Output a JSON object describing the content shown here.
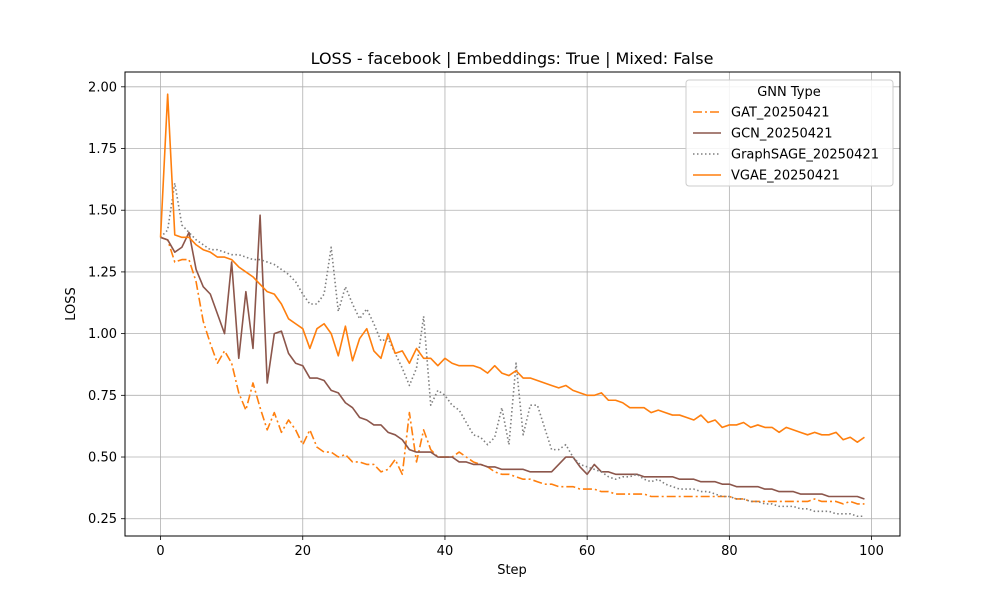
{
  "chart_data": {
    "type": "line",
    "title": "LOSS - facebook | Embeddings: True | Mixed: False",
    "xlabel": "Step",
    "ylabel": "LOSS",
    "xlim": [
      -5,
      104
    ],
    "ylim": [
      0.18,
      2.06
    ],
    "xticks": [
      0,
      20,
      40,
      60,
      80,
      100
    ],
    "yticks": [
      0.25,
      0.5,
      0.75,
      1.0,
      1.25,
      1.5,
      1.75,
      2.0
    ],
    "ytick_labels": [
      "0.25",
      "0.50",
      "0.75",
      "1.00",
      "1.25",
      "1.50",
      "1.75",
      "2.00"
    ],
    "grid": true,
    "legend": {
      "title": "GNN Type",
      "placement": "top-right"
    },
    "x": [
      0,
      1,
      2,
      3,
      4,
      5,
      6,
      7,
      8,
      9,
      10,
      11,
      12,
      13,
      14,
      15,
      16,
      17,
      18,
      19,
      20,
      21,
      22,
      23,
      24,
      25,
      26,
      27,
      28,
      29,
      30,
      31,
      32,
      33,
      34,
      35,
      36,
      37,
      38,
      39,
      40,
      41,
      42,
      43,
      44,
      45,
      46,
      47,
      48,
      49,
      50,
      51,
      52,
      53,
      54,
      55,
      56,
      57,
      58,
      59,
      60,
      61,
      62,
      63,
      64,
      65,
      66,
      67,
      68,
      69,
      70,
      71,
      72,
      73,
      74,
      75,
      76,
      77,
      78,
      79,
      80,
      81,
      82,
      83,
      84,
      85,
      86,
      87,
      88,
      89,
      90,
      91,
      92,
      93,
      94,
      95,
      96,
      97,
      98,
      99
    ],
    "series": [
      {
        "name": "GAT_20250421",
        "color": "#ff7f0e",
        "dash": "dashdot",
        "values": [
          1.39,
          1.38,
          1.29,
          1.3,
          1.3,
          1.21,
          1.05,
          0.96,
          0.88,
          0.93,
          0.88,
          0.76,
          0.69,
          0.8,
          0.7,
          0.61,
          0.68,
          0.6,
          0.65,
          0.61,
          0.55,
          0.61,
          0.54,
          0.52,
          0.52,
          0.5,
          0.51,
          0.48,
          0.48,
          0.47,
          0.47,
          0.44,
          0.45,
          0.49,
          0.43,
          0.68,
          0.48,
          0.61,
          0.53,
          0.5,
          0.5,
          0.5,
          0.52,
          0.5,
          0.48,
          0.47,
          0.46,
          0.44,
          0.43,
          0.43,
          0.42,
          0.41,
          0.41,
          0.4,
          0.39,
          0.39,
          0.38,
          0.38,
          0.38,
          0.37,
          0.37,
          0.37,
          0.36,
          0.36,
          0.35,
          0.35,
          0.35,
          0.35,
          0.35,
          0.34,
          0.34,
          0.34,
          0.34,
          0.34,
          0.34,
          0.34,
          0.34,
          0.34,
          0.34,
          0.34,
          0.34,
          0.33,
          0.33,
          0.32,
          0.32,
          0.32,
          0.32,
          0.32,
          0.32,
          0.32,
          0.32,
          0.32,
          0.33,
          0.32,
          0.32,
          0.32,
          0.31,
          0.32,
          0.31,
          0.31
        ]
      },
      {
        "name": "GCN_20250421",
        "color": "#8c564b",
        "dash": "solid",
        "values": [
          1.39,
          1.38,
          1.33,
          1.35,
          1.41,
          1.26,
          1.19,
          1.16,
          1.08,
          1.0,
          1.29,
          0.9,
          1.17,
          0.94,
          1.48,
          0.8,
          1.0,
          1.01,
          0.92,
          0.88,
          0.87,
          0.82,
          0.82,
          0.81,
          0.77,
          0.76,
          0.72,
          0.7,
          0.66,
          0.65,
          0.63,
          0.63,
          0.6,
          0.59,
          0.57,
          0.53,
          0.52,
          0.52,
          0.52,
          0.5,
          0.5,
          0.5,
          0.48,
          0.48,
          0.47,
          0.47,
          0.46,
          0.46,
          0.45,
          0.45,
          0.45,
          0.45,
          0.44,
          0.44,
          0.44,
          0.44,
          0.47,
          0.5,
          0.5,
          0.46,
          0.43,
          0.47,
          0.44,
          0.44,
          0.43,
          0.43,
          0.43,
          0.43,
          0.42,
          0.42,
          0.42,
          0.42,
          0.42,
          0.41,
          0.41,
          0.41,
          0.4,
          0.4,
          0.4,
          0.39,
          0.39,
          0.38,
          0.38,
          0.38,
          0.38,
          0.37,
          0.37,
          0.36,
          0.36,
          0.36,
          0.35,
          0.35,
          0.35,
          0.35,
          0.34,
          0.34,
          0.34,
          0.34,
          0.34,
          0.33
        ]
      },
      {
        "name": "GraphSAGE_20250421",
        "color": "#7f7f7f",
        "dash": "dotted",
        "values": [
          1.39,
          1.42,
          1.61,
          1.44,
          1.41,
          1.38,
          1.36,
          1.34,
          1.34,
          1.33,
          1.32,
          1.32,
          1.31,
          1.3,
          1.3,
          1.29,
          1.28,
          1.26,
          1.24,
          1.21,
          1.16,
          1.12,
          1.12,
          1.16,
          1.35,
          1.09,
          1.19,
          1.12,
          1.06,
          1.1,
          1.04,
          0.97,
          0.98,
          0.92,
          0.86,
          0.79,
          0.86,
          1.07,
          0.71,
          0.77,
          0.75,
          0.71,
          0.69,
          0.64,
          0.59,
          0.58,
          0.55,
          0.58,
          0.7,
          0.55,
          0.88,
          0.59,
          0.71,
          0.71,
          0.62,
          0.53,
          0.53,
          0.55,
          0.5,
          0.47,
          0.46,
          0.45,
          0.44,
          0.42,
          0.41,
          0.42,
          0.42,
          0.43,
          0.41,
          0.4,
          0.41,
          0.39,
          0.38,
          0.37,
          0.37,
          0.37,
          0.36,
          0.36,
          0.35,
          0.34,
          0.34,
          0.33,
          0.33,
          0.32,
          0.32,
          0.31,
          0.31,
          0.3,
          0.3,
          0.3,
          0.29,
          0.29,
          0.28,
          0.28,
          0.28,
          0.27,
          0.27,
          0.27,
          0.26,
          0.26
        ]
      },
      {
        "name": "VGAE_20250421",
        "color": "#ff7f0e",
        "dash": "solid",
        "values": [
          1.39,
          1.97,
          1.4,
          1.39,
          1.39,
          1.36,
          1.34,
          1.33,
          1.31,
          1.31,
          1.3,
          1.27,
          1.25,
          1.23,
          1.2,
          1.17,
          1.16,
          1.12,
          1.06,
          1.04,
          1.02,
          0.94,
          1.02,
          1.04,
          1.0,
          0.91,
          1.03,
          0.89,
          0.98,
          1.02,
          0.93,
          0.9,
          1.0,
          0.92,
          0.93,
          0.88,
          0.94,
          0.9,
          0.9,
          0.87,
          0.9,
          0.88,
          0.87,
          0.87,
          0.87,
          0.86,
          0.84,
          0.87,
          0.84,
          0.83,
          0.85,
          0.82,
          0.82,
          0.81,
          0.8,
          0.79,
          0.78,
          0.79,
          0.77,
          0.76,
          0.75,
          0.75,
          0.76,
          0.73,
          0.73,
          0.72,
          0.7,
          0.7,
          0.7,
          0.68,
          0.69,
          0.68,
          0.67,
          0.67,
          0.66,
          0.65,
          0.67,
          0.64,
          0.65,
          0.62,
          0.63,
          0.63,
          0.64,
          0.62,
          0.63,
          0.62,
          0.62,
          0.6,
          0.62,
          0.61,
          0.6,
          0.59,
          0.6,
          0.59,
          0.59,
          0.6,
          0.57,
          0.58,
          0.56,
          0.58
        ]
      }
    ]
  }
}
